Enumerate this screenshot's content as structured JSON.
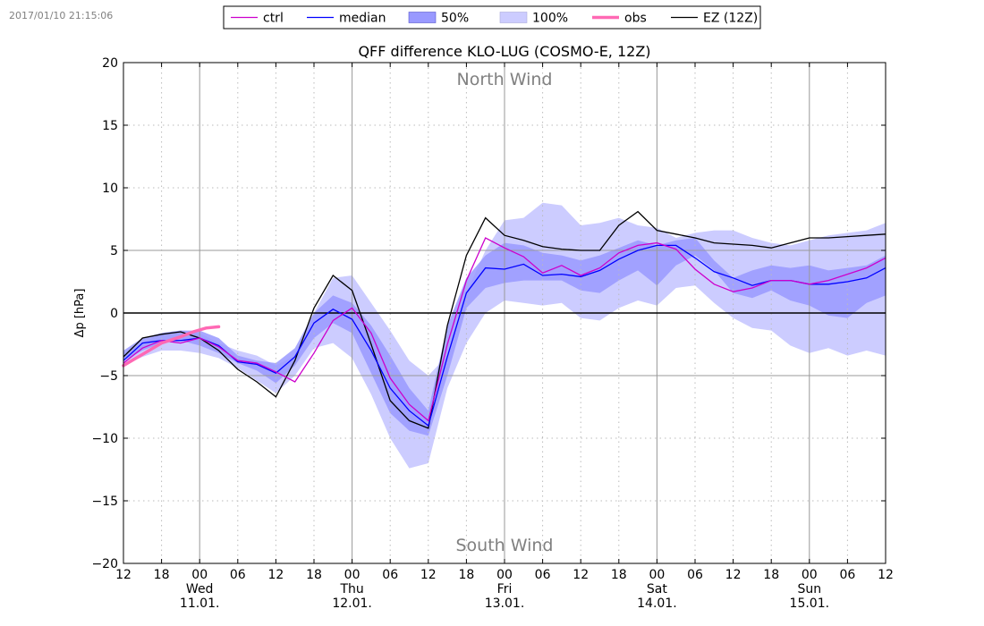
{
  "timestamp": "2017/01/10 21:15:06",
  "chart_data": {
    "type": "line",
    "title": "QFF difference KLO-LUG (COSMO-E, 12Z)",
    "ylabel": "Δp [hPa]",
    "xlabel": "",
    "ylim": [
      -20,
      20
    ],
    "xlim": [
      0,
      120
    ],
    "x_unit": "hours since 10.01. 12Z",
    "yticks": [
      -20,
      -15,
      -10,
      -5,
      0,
      5,
      10,
      15,
      20
    ],
    "annotations": {
      "top": "North Wind",
      "bottom": "South Wind"
    },
    "x_hour_ticks": [
      "12",
      "18",
      "00",
      "06",
      "12",
      "18",
      "00",
      "06",
      "12",
      "18",
      "00",
      "06",
      "12",
      "18",
      "00",
      "06",
      "12",
      "18",
      "00",
      "06",
      "12"
    ],
    "day_labels": [
      {
        "day": "Wed",
        "date": "11.01.",
        "hour": 12
      },
      {
        "day": "Thu",
        "date": "12.01.",
        "hour": 36
      },
      {
        "day": "Fri",
        "date": "13.01.",
        "hour": 60
      },
      {
        "day": "Sat",
        "date": "14.01.",
        "hour": 84
      },
      {
        "day": "Sun",
        "date": "15.01.",
        "hour": 108
      }
    ],
    "legend": [
      {
        "label": "ctrl",
        "kind": "line",
        "color": "#cc00cc"
      },
      {
        "label": "median",
        "kind": "line",
        "color": "#0000ff"
      },
      {
        "label": "50%",
        "kind": "fill",
        "color": "#9999ff"
      },
      {
        "label": "100%",
        "kind": "fill",
        "color": "#ccccff"
      },
      {
        "label": "obs",
        "kind": "thick",
        "color": "#ff69b4"
      },
      {
        "label": "EZ (12Z)",
        "kind": "line",
        "color": "#000000"
      }
    ],
    "x": [
      0,
      3,
      6,
      9,
      12,
      15,
      18,
      21,
      24,
      27,
      30,
      33,
      36,
      39,
      42,
      45,
      48,
      51,
      54,
      57,
      60,
      63,
      66,
      69,
      72,
      75,
      78,
      81,
      84,
      87,
      90,
      93,
      96,
      99,
      102,
      105,
      108,
      111,
      114,
      117,
      120
    ],
    "series": [
      {
        "name": "100% low",
        "values": [
          -4.2,
          -3.5,
          -3.0,
          -3.0,
          -3.2,
          -3.6,
          -4.4,
          -5.4,
          -6.4,
          -5.0,
          -2.8,
          -2.4,
          -3.6,
          -6.5,
          -10.0,
          -12.4,
          -12.0,
          -6.0,
          -2.4,
          0.0,
          1.0,
          0.8,
          0.6,
          0.8,
          -0.4,
          -0.6,
          0.4,
          1.0,
          0.6,
          2.0,
          2.2,
          0.8,
          -0.4,
          -1.2,
          -1.4,
          -2.6,
          -3.2,
          -2.8,
          -3.4,
          -3.0,
          -3.4
        ]
      },
      {
        "name": "100% high",
        "values": [
          -3.2,
          -2.4,
          -1.6,
          -1.4,
          -1.6,
          -2.4,
          -3.0,
          -3.4,
          -4.2,
          -3.4,
          0.0,
          2.8,
          3.0,
          0.8,
          -1.4,
          -3.8,
          -5.0,
          -3.4,
          1.6,
          5.0,
          7.4,
          7.6,
          8.8,
          8.6,
          7.0,
          7.2,
          7.6,
          7.0,
          6.8,
          6.0,
          6.4,
          6.6,
          6.6,
          6.0,
          5.6,
          5.4,
          5.8,
          6.2,
          6.4,
          6.6,
          7.2
        ]
      },
      {
        "name": "50% low",
        "values": [
          -3.8,
          -3.0,
          -2.4,
          -2.2,
          -2.6,
          -3.2,
          -4.0,
          -4.6,
          -5.6,
          -4.2,
          -2.0,
          -0.8,
          -1.6,
          -4.8,
          -8.0,
          -9.4,
          -9.8,
          -5.0,
          0.4,
          2.0,
          2.4,
          2.6,
          2.6,
          2.6,
          1.8,
          1.6,
          2.6,
          3.4,
          2.2,
          3.8,
          4.6,
          3.4,
          1.6,
          1.2,
          1.8,
          1.0,
          0.6,
          -0.2,
          -0.4,
          0.8,
          1.4
        ]
      },
      {
        "name": "50% high",
        "values": [
          -3.0,
          -2.0,
          -1.6,
          -1.4,
          -1.4,
          -2.0,
          -3.4,
          -3.8,
          -4.0,
          -2.8,
          0.0,
          1.4,
          0.8,
          -1.0,
          -3.4,
          -6.0,
          -7.8,
          -1.0,
          2.8,
          4.6,
          5.6,
          5.4,
          4.8,
          4.6,
          4.2,
          4.6,
          5.2,
          5.8,
          5.4,
          5.8,
          6.0,
          4.2,
          2.8,
          3.4,
          3.8,
          3.6,
          3.8,
          3.4,
          3.6,
          3.8,
          4.6
        ]
      },
      {
        "name": "median",
        "values": [
          -3.8,
          -2.4,
          -2.2,
          -2.2,
          -2.0,
          -2.6,
          -3.9,
          -4.1,
          -4.8,
          -3.5,
          -0.8,
          0.3,
          -0.5,
          -3.0,
          -6.0,
          -7.8,
          -9.0,
          -3.5,
          1.6,
          3.6,
          3.5,
          3.9,
          3.0,
          3.1,
          2.9,
          3.4,
          4.3,
          5.0,
          5.4,
          5.4,
          4.4,
          3.3,
          2.8,
          2.2,
          2.6,
          2.6,
          2.3,
          2.3,
          2.5,
          2.8,
          3.6
        ]
      },
      {
        "name": "ctrl",
        "values": [
          -4.0,
          -2.8,
          -2.2,
          -2.4,
          -2.0,
          -2.7,
          -3.8,
          -4.0,
          -4.7,
          -5.5,
          -3.2,
          -0.6,
          0.4,
          -1.6,
          -5.2,
          -7.3,
          -8.6,
          -2.5,
          2.6,
          6.0,
          5.2,
          4.5,
          3.2,
          3.8,
          3.0,
          3.6,
          4.8,
          5.4,
          5.6,
          5.1,
          3.5,
          2.3,
          1.7,
          2.0,
          2.6,
          2.6,
          2.3,
          2.6,
          3.1,
          3.6,
          4.4
        ]
      },
      {
        "name": "EZ (12Z)",
        "values": [
          -3.5,
          -2.0,
          -1.7,
          -1.5,
          -2.0,
          -3.0,
          -4.5,
          -5.5,
          -6.7,
          -3.8,
          0.4,
          3.0,
          1.8,
          -2.5,
          -7.0,
          -8.6,
          -9.2,
          -1.0,
          4.6,
          7.6,
          6.2,
          5.8,
          5.3,
          5.1,
          5.0,
          5.0,
          7.0,
          8.1,
          6.6,
          6.3,
          6.0,
          5.6,
          5.5,
          5.4,
          5.2,
          5.6,
          6.0,
          6.0,
          6.1,
          6.2,
          6.3
        ]
      },
      {
        "name": "obs",
        "x": [
          0,
          3,
          6,
          9,
          11,
          13,
          15
        ],
        "values": [
          -4.2,
          -3.3,
          -2.4,
          -1.9,
          -1.5,
          -1.2,
          -1.1
        ]
      }
    ]
  }
}
